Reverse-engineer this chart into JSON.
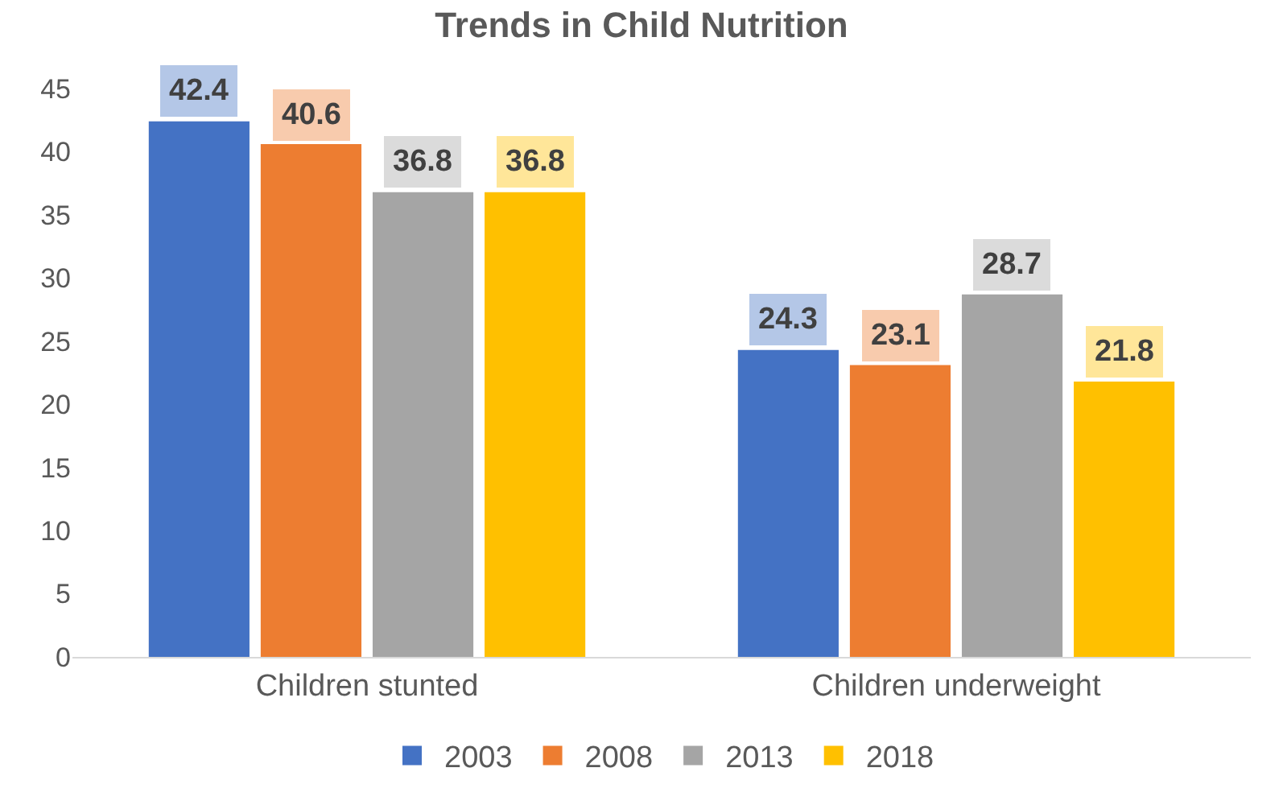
{
  "chart_data": {
    "type": "bar",
    "title": "Trends in Child Nutrition",
    "categories": [
      "Children stunted",
      "Children underweight"
    ],
    "series": [
      {
        "name": "2003",
        "color": "#4472c4",
        "values": [
          42.4,
          24.3
        ]
      },
      {
        "name": "2008",
        "color": "#ed7d31",
        "values": [
          40.6,
          23.1
        ]
      },
      {
        "name": "2013",
        "color": "#a5a5a5",
        "values": [
          36.8,
          28.7
        ]
      },
      {
        "name": "2018",
        "color": "#ffc000",
        "values": [
          36.8,
          21.8
        ]
      }
    ],
    "ylim": [
      0,
      45
    ],
    "yticks": [
      0,
      5,
      10,
      15,
      20,
      25,
      30,
      35,
      40,
      45
    ],
    "grid": false,
    "legend": "bottom",
    "data_labels": true
  }
}
